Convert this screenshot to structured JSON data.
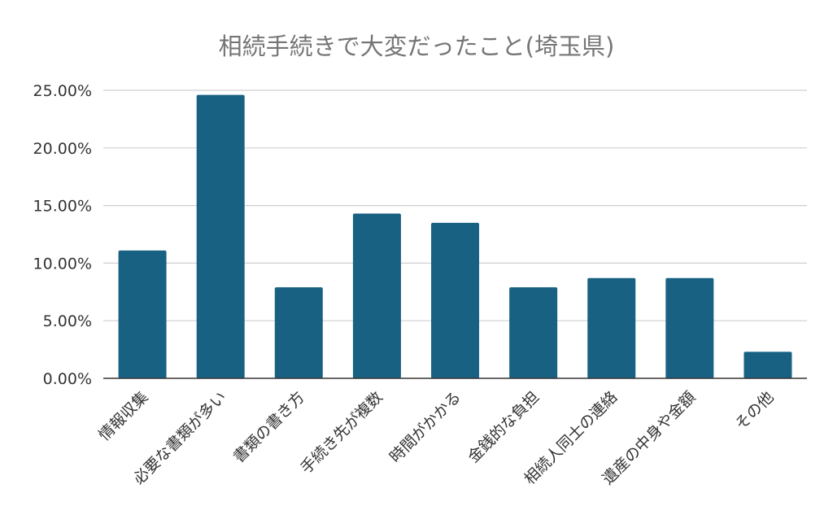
{
  "chart_data": {
    "type": "bar",
    "title": "相続手続きで大変だったこと(埼玉県)",
    "xlabel": "",
    "ylabel": "",
    "categories": [
      "情報収集",
      "必要な書類が多い",
      "書類の書き方",
      "手続き先が複数",
      "時間がかかる",
      "金銭的な負担",
      "相続人同士の連絡",
      "遺産の中身や金額",
      "その他"
    ],
    "values": [
      11.1,
      24.6,
      7.9,
      14.3,
      13.5,
      7.9,
      8.7,
      8.7,
      2.3
    ],
    "ylim": [
      0,
      25
    ],
    "yticks": [
      0,
      5,
      10,
      15,
      20,
      25
    ],
    "ytick_labels": [
      "0.00%",
      "5.00%",
      "10.00%",
      "15.00%",
      "20.00%",
      "25.00%"
    ],
    "grid": true,
    "legend": "none",
    "bar_color": "#186182",
    "grid_color": "#cfcfcf",
    "axis_color": "#333333",
    "text_color": "#333333",
    "title_color": "#757575"
  }
}
